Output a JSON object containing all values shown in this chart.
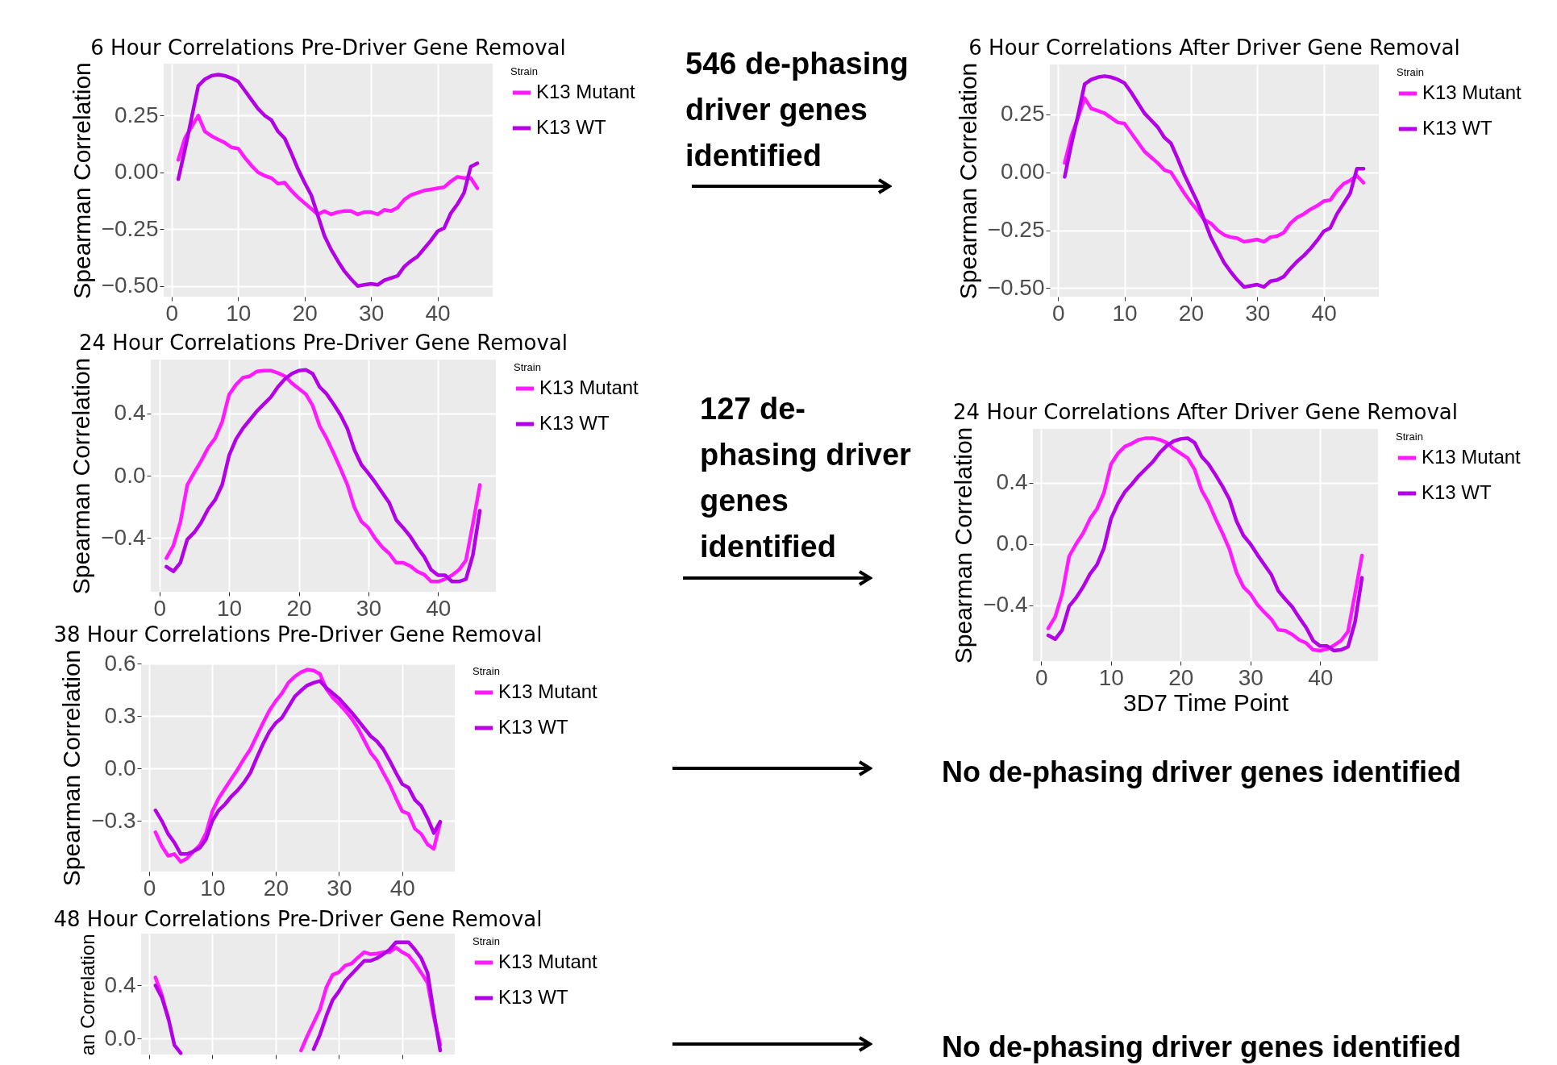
{
  "chart_data": [
    {
      "type": "line",
      "title": "6 Hour Correlations Pre-Driver Gene Removal",
      "ylabel": "Spearman Correlation",
      "legend_title": "Strain",
      "legend": "right",
      "grid": true,
      "x": [
        1,
        2,
        3,
        4,
        5,
        6,
        7,
        8,
        9,
        10,
        11,
        12,
        13,
        14,
        15,
        16,
        17,
        18,
        19,
        20,
        21,
        22,
        23,
        24,
        25,
        26,
        27,
        28,
        29,
        30,
        31,
        32,
        33,
        34,
        35,
        36,
        37,
        38,
        39,
        40,
        41,
        42,
        43,
        44,
        45,
        46
      ],
      "xlim": [
        -1.2,
        48.3
      ],
      "xticks": [
        0,
        10,
        20,
        30,
        40
      ],
      "ylim": [
        -0.547,
        0.478
      ],
      "yticks": [
        {
          "value": -0.5,
          "label": "−0.50"
        },
        {
          "value": -0.25,
          "label": "−0.25"
        },
        {
          "value": 0,
          "label": "0.00"
        },
        0.25
      ],
      "annotations": [
        "546 de-phasing driver genes identified"
      ],
      "series": [
        {
          "name": "K13 Mutant",
          "color": "#ff1aff",
          "values": [
            0.055,
            0.15,
            0.2,
            0.25,
            0.18,
            0.16,
            0.145,
            0.13,
            0.11,
            0.105,
            0.065,
            0.03,
            0.0,
            -0.015,
            -0.025,
            -0.05,
            -0.045,
            -0.08,
            -0.11,
            -0.135,
            -0.16,
            -0.185,
            -0.17,
            -0.185,
            -0.175,
            -0.17,
            -0.17,
            -0.185,
            -0.175,
            -0.175,
            -0.185,
            -0.165,
            -0.17,
            -0.155,
            -0.12,
            -0.1,
            -0.09,
            -0.08,
            -0.075,
            -0.07,
            -0.065,
            -0.04,
            -0.02,
            -0.025,
            -0.025,
            -0.07
          ]
        },
        {
          "name": "K13 WT",
          "color": "#b300e6",
          "values": [
            -0.03,
            0.1,
            0.24,
            0.38,
            0.41,
            0.425,
            0.43,
            0.425,
            0.415,
            0.4,
            0.36,
            0.32,
            0.28,
            0.25,
            0.23,
            0.18,
            0.15,
            0.085,
            0.015,
            -0.045,
            -0.1,
            -0.19,
            -0.28,
            -0.34,
            -0.39,
            -0.435,
            -0.47,
            -0.5,
            -0.495,
            -0.49,
            -0.495,
            -0.475,
            -0.465,
            -0.455,
            -0.415,
            -0.39,
            -0.37,
            -0.335,
            -0.3,
            -0.26,
            -0.245,
            -0.18,
            -0.14,
            -0.09,
            0.025,
            0.04
          ]
        }
      ]
    },
    {
      "type": "line",
      "title": "6 Hour Correlations After Driver Gene Removal",
      "ylabel": "Spearman Correlation",
      "legend_title": "Strain",
      "legend": "right",
      "grid": true,
      "x": [
        1,
        2,
        3,
        4,
        5,
        6,
        7,
        8,
        9,
        10,
        11,
        12,
        13,
        14,
        15,
        16,
        17,
        18,
        19,
        20,
        21,
        22,
        23,
        24,
        25,
        26,
        27,
        28,
        29,
        30,
        31,
        32,
        33,
        34,
        35,
        36,
        37,
        38,
        39,
        40,
        41,
        42,
        43,
        44,
        45,
        46
      ],
      "xlim": [
        -1.24,
        48.3
      ],
      "xticks": [
        0,
        10,
        20,
        30,
        40
      ],
      "ylim": [
        -0.537,
        0.465
      ],
      "yticks": [
        {
          "value": -0.5,
          "label": "−0.50"
        },
        {
          "value": -0.25,
          "label": "−0.25"
        },
        {
          "value": 0,
          "label": "0.00"
        },
        0.25
      ],
      "series": [
        {
          "name": "K13 Mutant",
          "color": "#ff1aff",
          "values": [
            0.04,
            0.155,
            0.235,
            0.32,
            0.275,
            0.265,
            0.255,
            0.235,
            0.215,
            0.21,
            0.17,
            0.13,
            0.09,
            0.065,
            0.04,
            0.01,
            0.0,
            -0.045,
            -0.09,
            -0.13,
            -0.165,
            -0.205,
            -0.22,
            -0.25,
            -0.27,
            -0.28,
            -0.285,
            -0.3,
            -0.295,
            -0.29,
            -0.3,
            -0.28,
            -0.275,
            -0.26,
            -0.22,
            -0.195,
            -0.18,
            -0.16,
            -0.145,
            -0.125,
            -0.12,
            -0.08,
            -0.05,
            -0.035,
            -0.015,
            -0.045
          ]
        },
        {
          "name": "K13 WT",
          "color": "#b300e6",
          "values": [
            -0.02,
            0.12,
            0.245,
            0.38,
            0.4,
            0.41,
            0.415,
            0.41,
            0.4,
            0.385,
            0.345,
            0.3,
            0.255,
            0.225,
            0.195,
            0.15,
            0.125,
            0.06,
            -0.01,
            -0.07,
            -0.13,
            -0.205,
            -0.28,
            -0.335,
            -0.39,
            -0.43,
            -0.465,
            -0.495,
            -0.49,
            -0.485,
            -0.495,
            -0.47,
            -0.465,
            -0.45,
            -0.415,
            -0.385,
            -0.36,
            -0.33,
            -0.295,
            -0.255,
            -0.24,
            -0.18,
            -0.135,
            -0.09,
            0.015,
            0.015
          ]
        }
      ]
    },
    {
      "type": "line",
      "title": "24 Hour Correlations Pre-Driver Gene Removal",
      "ylabel": "Spearman Correlation",
      "legend_title": "Strain",
      "legend": "right",
      "grid": true,
      "x": [
        1,
        2,
        3,
        4,
        5,
        6,
        7,
        8,
        9,
        10,
        11,
        12,
        13,
        14,
        15,
        16,
        17,
        18,
        19,
        20,
        21,
        22,
        23,
        24,
        25,
        26,
        27,
        28,
        29,
        30,
        31,
        32,
        33,
        34,
        35,
        36,
        37,
        38,
        39,
        40,
        41,
        42,
        43,
        44,
        45,
        46
      ],
      "xlim": [
        -1.24,
        48.3
      ],
      "xticks": [
        0,
        10,
        20,
        30,
        40
      ],
      "ylim": [
        -0.746,
        0.746
      ],
      "yticks": [
        {
          "value": -0.4,
          "label": "−0.4"
        },
        {
          "value": 0,
          "label": "0.0"
        },
        0.4
      ],
      "annotations": [
        "127 de-phasing driver genes identified"
      ],
      "series": [
        {
          "name": "K13 Mutant",
          "color": "#ff1aff",
          "values": [
            -0.53,
            -0.45,
            -0.3,
            -0.06,
            0.02,
            0.095,
            0.18,
            0.24,
            0.345,
            0.52,
            0.585,
            0.63,
            0.64,
            0.67,
            0.675,
            0.675,
            0.66,
            0.64,
            0.595,
            0.56,
            0.525,
            0.45,
            0.32,
            0.24,
            0.145,
            0.045,
            -0.06,
            -0.205,
            -0.295,
            -0.335,
            -0.405,
            -0.46,
            -0.5,
            -0.56,
            -0.56,
            -0.58,
            -0.615,
            -0.635,
            -0.68,
            -0.68,
            -0.665,
            -0.64,
            -0.605,
            -0.545,
            -0.31,
            -0.06
          ]
        },
        {
          "name": "K13 WT",
          "color": "#b300e6",
          "values": [
            -0.585,
            -0.615,
            -0.56,
            -0.41,
            -0.365,
            -0.3,
            -0.215,
            -0.155,
            -0.06,
            0.13,
            0.235,
            0.305,
            0.36,
            0.415,
            0.46,
            0.505,
            0.57,
            0.62,
            0.655,
            0.675,
            0.68,
            0.655,
            0.57,
            0.525,
            0.46,
            0.39,
            0.3,
            0.165,
            0.07,
            0.015,
            -0.045,
            -0.11,
            -0.175,
            -0.285,
            -0.335,
            -0.39,
            -0.46,
            -0.52,
            -0.605,
            -0.64,
            -0.64,
            -0.68,
            -0.68,
            -0.665,
            -0.51,
            -0.225
          ]
        }
      ]
    },
    {
      "type": "line",
      "title": "24 Hour Correlations After Driver Gene Removal",
      "xlabel": "3D7 Time Point",
      "ylabel": "Spearman Correlation",
      "legend_title": "Strain",
      "legend": "right",
      "grid": true,
      "x": [
        1,
        2,
        3,
        4,
        5,
        6,
        7,
        8,
        9,
        10,
        11,
        12,
        13,
        14,
        15,
        16,
        17,
        18,
        19,
        20,
        21,
        22,
        23,
        24,
        25,
        26,
        27,
        28,
        29,
        30,
        31,
        32,
        33,
        34,
        35,
        36,
        37,
        38,
        39,
        40,
        41,
        42,
        43,
        44,
        45,
        46
      ],
      "xlim": [
        -1.2,
        48.3
      ],
      "xticks": [
        0,
        10,
        20,
        30,
        40
      ],
      "ylim": [
        -0.763,
        0.75
      ],
      "yticks": [
        {
          "value": -0.4,
          "label": "−0.4"
        },
        {
          "value": 0,
          "label": "0.0"
        },
        0.4
      ],
      "series": [
        {
          "name": "K13 Mutant",
          "color": "#ff1aff",
          "values": [
            -0.55,
            -0.475,
            -0.325,
            -0.08,
            0.0,
            0.07,
            0.165,
            0.23,
            0.335,
            0.52,
            0.59,
            0.635,
            0.655,
            0.68,
            0.69,
            0.69,
            0.68,
            0.66,
            0.62,
            0.59,
            0.56,
            0.485,
            0.35,
            0.27,
            0.165,
            0.07,
            -0.035,
            -0.185,
            -0.28,
            -0.325,
            -0.395,
            -0.445,
            -0.49,
            -0.56,
            -0.565,
            -0.59,
            -0.625,
            -0.645,
            -0.69,
            -0.695,
            -0.685,
            -0.66,
            -0.63,
            -0.57,
            -0.325,
            -0.075
          ]
        },
        {
          "name": "K13 WT",
          "color": "#b300e6",
          "values": [
            -0.595,
            -0.62,
            -0.56,
            -0.405,
            -0.35,
            -0.28,
            -0.195,
            -0.135,
            -0.025,
            0.165,
            0.265,
            0.34,
            0.39,
            0.445,
            0.49,
            0.535,
            0.595,
            0.64,
            0.67,
            0.685,
            0.69,
            0.66,
            0.57,
            0.52,
            0.45,
            0.375,
            0.29,
            0.15,
            0.055,
            0.0,
            -0.07,
            -0.135,
            -0.2,
            -0.305,
            -0.36,
            -0.41,
            -0.48,
            -0.545,
            -0.63,
            -0.665,
            -0.665,
            -0.695,
            -0.69,
            -0.67,
            -0.51,
            -0.22
          ]
        }
      ]
    },
    {
      "type": "line",
      "title": "38 Hour Correlations Pre-Driver Gene Removal",
      "ylabel": "Spearman Correlation",
      "legend_title": "Strain",
      "legend": "right",
      "grid": true,
      "x": [
        1,
        2,
        3,
        4,
        5,
        6,
        7,
        8,
        9,
        10,
        11,
        12,
        13,
        14,
        15,
        16,
        17,
        18,
        19,
        20,
        21,
        22,
        23,
        24,
        25,
        26,
        27,
        28,
        29,
        30,
        31,
        32,
        33,
        34,
        35,
        36,
        37,
        38,
        39,
        40,
        41,
        42,
        43,
        44,
        45,
        46
      ],
      "xlim": [
        -1.27,
        48.3
      ],
      "xticks": [
        0,
        10,
        20,
        30,
        40
      ],
      "ylim": [
        -0.59,
        0.6
      ],
      "yticks": [
        {
          "value": -0.3,
          "label": "−0.3"
        },
        {
          "value": 0,
          "label": "0.0"
        },
        0.3,
        0.6
      ],
      "annotations": [
        "No de-phasing driver genes identified"
      ],
      "series": [
        {
          "name": "K13 Mutant",
          "color": "#ff1aff",
          "values": [
            -0.365,
            -0.445,
            -0.5,
            -0.49,
            -0.535,
            -0.515,
            -0.475,
            -0.44,
            -0.37,
            -0.245,
            -0.17,
            -0.115,
            -0.06,
            -0.005,
            0.055,
            0.11,
            0.185,
            0.26,
            0.33,
            0.385,
            0.43,
            0.49,
            0.525,
            0.55,
            0.565,
            0.56,
            0.54,
            0.455,
            0.405,
            0.37,
            0.33,
            0.285,
            0.23,
            0.16,
            0.09,
            0.045,
            -0.025,
            -0.09,
            -0.17,
            -0.245,
            -0.26,
            -0.345,
            -0.375,
            -0.435,
            -0.46,
            -0.31
          ]
        },
        {
          "name": "K13 WT",
          "color": "#b300e6",
          "values": [
            -0.24,
            -0.3,
            -0.375,
            -0.425,
            -0.49,
            -0.49,
            -0.475,
            -0.455,
            -0.405,
            -0.3,
            -0.24,
            -0.205,
            -0.16,
            -0.125,
            -0.08,
            -0.025,
            0.06,
            0.14,
            0.21,
            0.26,
            0.29,
            0.35,
            0.41,
            0.445,
            0.475,
            0.49,
            0.5,
            0.46,
            0.43,
            0.4,
            0.36,
            0.32,
            0.275,
            0.23,
            0.185,
            0.155,
            0.11,
            0.045,
            -0.025,
            -0.09,
            -0.11,
            -0.18,
            -0.215,
            -0.285,
            -0.37,
            -0.305
          ]
        }
      ]
    },
    {
      "type": "line",
      "title": "48 Hour Correlations Pre-Driver Gene Removal",
      "ylabel": "an Correlation",
      "legend_title": "Strain",
      "legend": "right",
      "grid": true,
      "tick_labels": "y",
      "x": [
        1,
        2,
        3,
        4,
        5,
        6,
        7,
        8,
        9,
        10,
        11,
        12,
        13,
        14,
        15,
        16,
        17,
        18,
        19,
        20,
        21,
        22,
        23,
        24,
        25,
        26,
        27,
        28,
        29,
        30,
        31,
        32,
        33,
        34,
        35,
        36,
        37,
        38,
        39,
        40,
        41,
        42,
        43,
        44,
        45,
        46
      ],
      "xlim": [
        -1.27,
        48.3
      ],
      "xticks": [
        0,
        10,
        20,
        30,
        40
      ],
      "ylim": [
        -0.12,
        0.79
      ],
      "yticks": [
        {
          "value": 0,
          "label": "0.0"
        },
        0.4
      ],
      "annotations": [
        "No de-phasing driver genes identified"
      ],
      "series": [
        {
          "name": "K13 Mutant",
          "color": "#ff1aff",
          "values": [
            0.46,
            0.33,
            0.15,
            null,
            null,
            null,
            null,
            null,
            null,
            null,
            null,
            null,
            null,
            null,
            null,
            null,
            null,
            null,
            null,
            null,
            null,
            null,
            null,
            -0.09,
            0.02,
            0.12,
            0.22,
            0.385,
            0.48,
            0.5,
            0.55,
            0.565,
            0.61,
            0.65,
            0.635,
            0.64,
            0.65,
            0.65,
            0.685,
            0.65,
            0.625,
            0.565,
            0.495,
            0.42,
            0.16,
            -0.045
          ]
        },
        {
          "name": "K13 WT",
          "color": "#b300e6",
          "values": [
            0.4,
            0.31,
            0.16,
            -0.05,
            -0.11,
            null,
            null,
            null,
            null,
            null,
            null,
            null,
            null,
            null,
            null,
            null,
            null,
            null,
            null,
            null,
            null,
            null,
            null,
            null,
            null,
            -0.08,
            0.03,
            0.17,
            0.29,
            0.355,
            0.435,
            0.485,
            0.535,
            0.585,
            0.585,
            0.605,
            0.635,
            0.67,
            0.725,
            0.725,
            0.725,
            0.67,
            0.605,
            0.495,
            0.19,
            -0.09
          ]
        }
      ]
    }
  ]
}
